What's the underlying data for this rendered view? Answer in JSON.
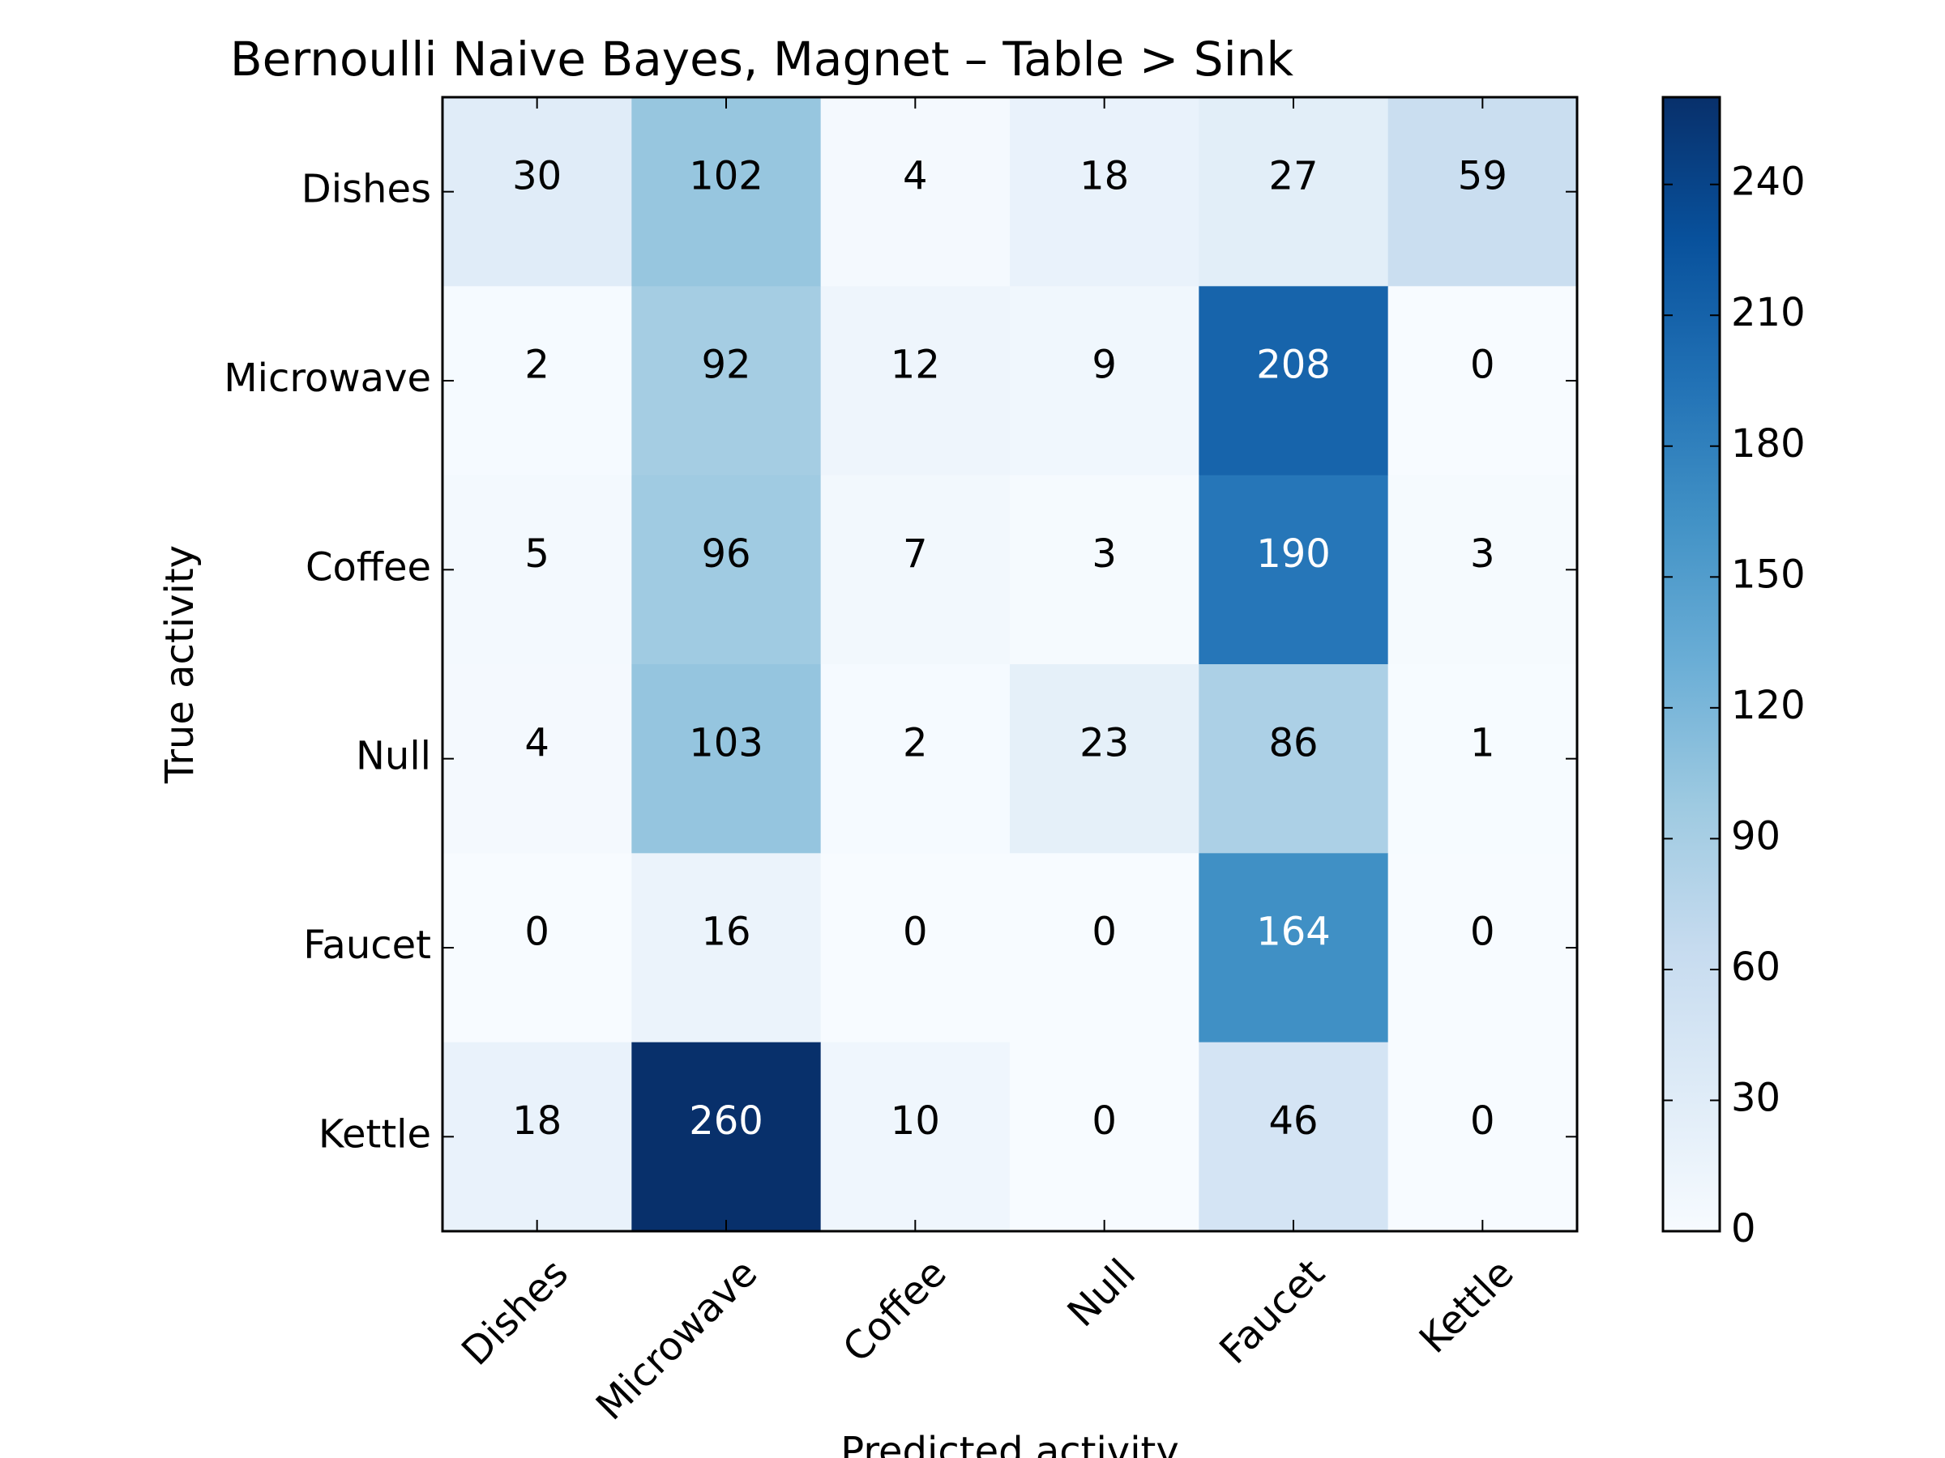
{
  "chart_data": {
    "type": "heatmap",
    "title": "Bernoulli Naive Bayes, Magnet – Table > Sink",
    "xlabel": "Predicted activity",
    "ylabel": "True activity",
    "x_categories": [
      "Dishes",
      "Microwave",
      "Coffee",
      "Null",
      "Faucet",
      "Kettle"
    ],
    "y_categories": [
      "Dishes",
      "Microwave",
      "Coffee",
      "Null",
      "Faucet",
      "Kettle"
    ],
    "values": [
      [
        30,
        102,
        4,
        18,
        27,
        59
      ],
      [
        2,
        92,
        12,
        9,
        208,
        0
      ],
      [
        5,
        96,
        7,
        3,
        190,
        3
      ],
      [
        4,
        103,
        2,
        23,
        86,
        1
      ],
      [
        0,
        16,
        0,
        0,
        164,
        0
      ],
      [
        18,
        260,
        10,
        0,
        46,
        0
      ]
    ],
    "colormap": "Blues",
    "colorbar": {
      "range": [
        0,
        260
      ],
      "ticks": [
        0,
        30,
        60,
        90,
        120,
        150,
        180,
        210,
        240
      ]
    },
    "colors": {
      "low": "#f7fbff",
      "high": "#08306b",
      "text_dark": "#000000",
      "text_light": "#ffffff"
    }
  }
}
